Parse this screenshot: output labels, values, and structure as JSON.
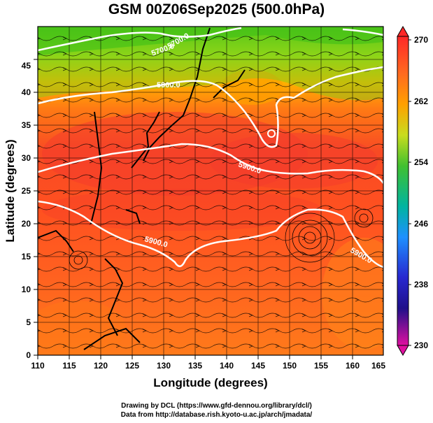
{
  "title": "GSM 00Z06Sep2025 (500.0hPa)",
  "x_axis": {
    "label": "Longitude (degrees)",
    "ticks": [
      "110",
      "115",
      "120",
      "125",
      "130",
      "135",
      "140",
      "145",
      "150",
      "155",
      "160",
      "165"
    ]
  },
  "y_axis": {
    "label": "Latitude  (degrees)",
    "ticks": [
      "0",
      "5",
      "10",
      "15",
      "20",
      "25",
      "30",
      "35",
      "40",
      "45"
    ]
  },
  "colorbar": {
    "labels": [
      "270",
      "262",
      "254",
      "246",
      "238",
      "230"
    ],
    "colors": [
      "#e0109a",
      "#2020b0",
      "#1e90ff",
      "#00c8c8",
      "#30c030",
      "#a8dc1e",
      "#ffa000",
      "#ff4020"
    ]
  },
  "contours": {
    "c5700_a": "5700.0",
    "c5700_b": "5700.0",
    "c5900_a": "5900.0",
    "c5900_b": "5900.0",
    "c5900_c": "5900.0",
    "c5900_d": "5900.0"
  },
  "credits": {
    "line1": "Drawing by DCL (https://www.gfd-dennou.org/library/dcl/)",
    "line2": "Data from http://database.rish.kyoto-u.ac.jp/arch/jmadata/"
  }
}
